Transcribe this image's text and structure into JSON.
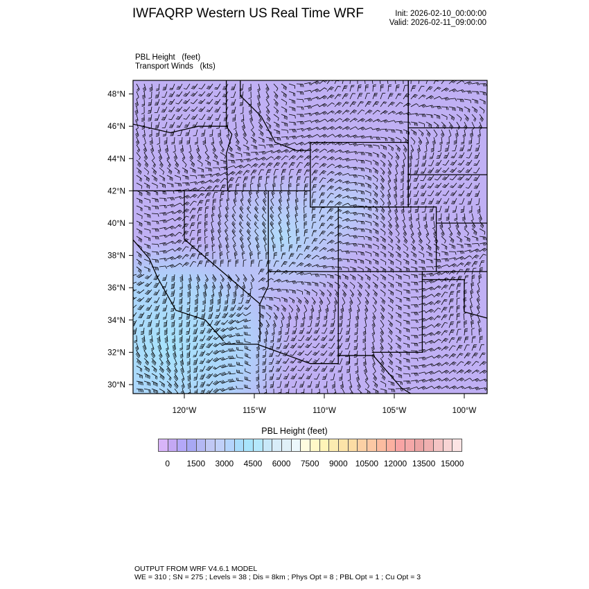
{
  "header": {
    "title": "IWFAQRP Western US Real Time WRF",
    "init": "Init: 2026-02-10_00:00:00",
    "valid": "Valid: 2026-02-11_09:00:00"
  },
  "fields": {
    "line1": "PBL Height   (feet)",
    "line2": "Transport Winds   (kts)"
  },
  "map": {
    "lat_ticks": [
      "30°N",
      "32°N",
      "34°N",
      "36°N",
      "38°N",
      "40°N",
      "42°N",
      "44°N",
      "46°N",
      "48°N"
    ],
    "lon_ticks": [
      "120°W",
      "115°W",
      "110°W",
      "105°W",
      "100°W"
    ],
    "base_color": "#c0b0f4",
    "low_pbl_highlight_color": "#a8e2fc"
  },
  "colorbar": {
    "title": "PBL Height  (feet)",
    "labels": [
      "0",
      "1500",
      "3000",
      "4500",
      "6000",
      "7500",
      "9000",
      "10500",
      "12000",
      "13500",
      "15000"
    ],
    "interval_feet": 500,
    "colors": [
      "#d8b4f8",
      "#c4a8f4",
      "#b4a8f8",
      "#a8a8f4",
      "#b4b8f4",
      "#c0c8f4",
      "#c0d0f8",
      "#b4d4fc",
      "#a8dcfc",
      "#a8e4fc",
      "#b4e8fc",
      "#c8e8f8",
      "#d8ecf8",
      "#e0f0f8",
      "#ecf8fc",
      "#fffce0",
      "#fff8c8",
      "#fff4b8",
      "#fcecb0",
      "#fce4a8",
      "#fcdca4",
      "#fcd0a4",
      "#fcc8a4",
      "#fcbca0",
      "#fcb0a0",
      "#f8a4a4",
      "#f4a8a8",
      "#eca4a4",
      "#f0b0b0",
      "#f4c4c4",
      "#f8d4d4",
      "#fce4e4"
    ]
  },
  "footer": {
    "line1": "OUTPUT FROM WRF V4.6.1 MODEL",
    "line2": "WE = 310 ; SN = 275 ; Levels = 38 ; Dis = 8km ; Phys Opt = 8 ; PBL Opt = 1 ; Cu Opt = 3"
  }
}
